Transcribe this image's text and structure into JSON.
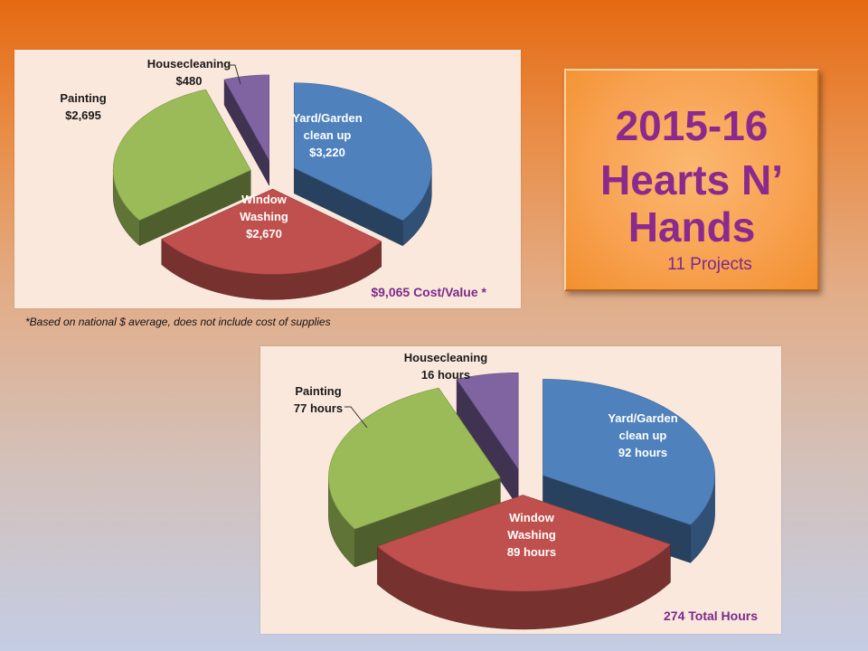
{
  "title_box": {
    "line1": "2015-16",
    "line2": "Hearts N’",
    "line3": "Hands",
    "projects": "11 Projects"
  },
  "footnote": "*Based on national $ average, does not include cost of supplies",
  "chart_data": [
    {
      "type": "pie",
      "title": "",
      "total_label": "$9,065 Cost/Value *",
      "unit": "$",
      "categories": [
        "Yard/Garden clean up",
        "Window Washing",
        "Painting",
        "Housecleaning"
      ],
      "values": [
        3220,
        2670,
        2695,
        480
      ],
      "labels": [
        [
          "Yard/Garden",
          "clean up",
          "$3,220"
        ],
        [
          "Window",
          "Washing",
          "$2,670"
        ],
        [
          "Painting",
          "$2,695"
        ],
        [
          "Housecleaning",
          "$480"
        ]
      ],
      "colors": [
        "#4f81bd",
        "#c0504d",
        "#9bbb59",
        "#8064a2"
      ],
      "style": "3d exploded"
    },
    {
      "type": "pie",
      "title": "",
      "total_label": "274 Total Hours",
      "unit": "hours",
      "categories": [
        "Yard/Garden clean up",
        "Window Washing",
        "Painting",
        "Housecleaning"
      ],
      "values": [
        92,
        89,
        77,
        16
      ],
      "labels": [
        [
          "Yard/Garden",
          "clean up",
          "92 hours"
        ],
        [
          "Window",
          "Washing",
          "89 hours"
        ],
        [
          "Painting",
          "77 hours"
        ],
        [
          "Housecleaning",
          "16 hours"
        ]
      ],
      "colors": [
        "#4f81bd",
        "#c0504d",
        "#9bbb59",
        "#8064a2"
      ],
      "style": "3d exploded"
    }
  ]
}
